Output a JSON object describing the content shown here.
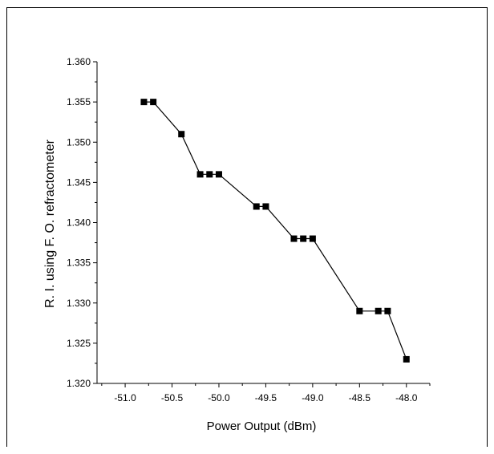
{
  "chart_data": {
    "type": "line",
    "xlabel": "Power Output (dBm)",
    "ylabel": "R. I. using F. O. refractometer",
    "xlim": [
      -51.3,
      -47.75
    ],
    "ylim": [
      1.32,
      1.36
    ],
    "xticks": [
      -51.0,
      -50.5,
      -50.0,
      -49.5,
      -49.0,
      -48.5,
      -48.0
    ],
    "xtick_labels": [
      "-51.0",
      "-50.5",
      "-50.0",
      "-49.5",
      "-49.0",
      "-48.5",
      "-48.0"
    ],
    "yticks": [
      1.32,
      1.325,
      1.33,
      1.335,
      1.34,
      1.345,
      1.35,
      1.355,
      1.36
    ],
    "ytick_labels": [
      "1.320",
      "1.325",
      "1.330",
      "1.335",
      "1.340",
      "1.345",
      "1.350",
      "1.355",
      "1.360"
    ],
    "grid": false,
    "series": [
      {
        "marker": "square",
        "color": "#000000",
        "points": [
          {
            "x": -50.8,
            "y": 1.355
          },
          {
            "x": -50.7,
            "y": 1.355
          },
          {
            "x": -50.4,
            "y": 1.351
          },
          {
            "x": -50.2,
            "y": 1.346
          },
          {
            "x": -50.1,
            "y": 1.346
          },
          {
            "x": -50.0,
            "y": 1.346
          },
          {
            "x": -49.6,
            "y": 1.342
          },
          {
            "x": -49.5,
            "y": 1.342
          },
          {
            "x": -49.2,
            "y": 1.338
          },
          {
            "x": -49.1,
            "y": 1.338
          },
          {
            "x": -49.0,
            "y": 1.338
          },
          {
            "x": -48.5,
            "y": 1.329
          },
          {
            "x": -48.3,
            "y": 1.329
          },
          {
            "x": -48.2,
            "y": 1.329
          },
          {
            "x": -48.0,
            "y": 1.323
          }
        ]
      }
    ]
  }
}
